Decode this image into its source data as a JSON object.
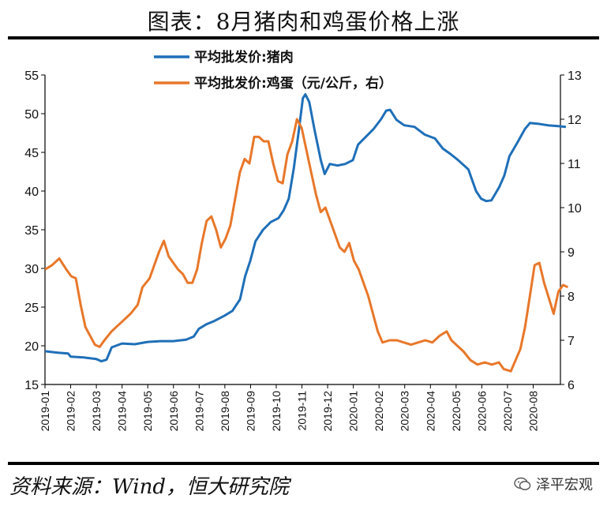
{
  "header": {
    "title": "图表：8月猪肉和鸡蛋价格上涨"
  },
  "footer": {
    "source": "资料来源：Wind，恒大研究院",
    "watermark": "泽平宏观"
  },
  "chart_data": {
    "type": "line",
    "title": "图表：8月猪肉和鸡蛋价格上涨",
    "x_tick_labels": [
      "2019-01",
      "2019-02",
      "2019-03",
      "2019-04",
      "2019-05",
      "2019-06",
      "2019-07",
      "2019-08",
      "2019-09",
      "2019-10",
      "2019-11",
      "2019-12",
      "2020-01",
      "2020-02",
      "2020-03",
      "2020-04",
      "2020-05",
      "2020-06",
      "2020-07",
      "2020-08"
    ],
    "y_left": {
      "lim": [
        15,
        55
      ],
      "ticks": [
        15,
        20,
        25,
        30,
        35,
        40,
        45,
        50,
        55
      ]
    },
    "y_right": {
      "lim": [
        6,
        13
      ],
      "ticks": [
        6,
        7,
        8,
        9,
        10,
        11,
        12,
        13
      ]
    },
    "legend_position": "top-center",
    "grid": false,
    "series": [
      {
        "name": "平均批发价:猪肉",
        "axis": "left",
        "color": "#1f6fb8",
        "points": [
          [
            0.0,
            19.3
          ],
          [
            0.5,
            19.1
          ],
          [
            0.9,
            19.0
          ],
          [
            1.0,
            18.6
          ],
          [
            1.5,
            18.5
          ],
          [
            2.0,
            18.3
          ],
          [
            2.2,
            18.0
          ],
          [
            2.4,
            18.2
          ],
          [
            2.6,
            19.8
          ],
          [
            3.0,
            20.3
          ],
          [
            3.5,
            20.2
          ],
          [
            4.0,
            20.5
          ],
          [
            4.5,
            20.6
          ],
          [
            5.0,
            20.6
          ],
          [
            5.5,
            20.8
          ],
          [
            5.8,
            21.2
          ],
          [
            6.0,
            22.2
          ],
          [
            6.3,
            22.8
          ],
          [
            6.6,
            23.2
          ],
          [
            7.0,
            23.9
          ],
          [
            7.3,
            24.5
          ],
          [
            7.6,
            26.0
          ],
          [
            7.8,
            29.0
          ],
          [
            8.0,
            31.0
          ],
          [
            8.2,
            33.5
          ],
          [
            8.5,
            35.0
          ],
          [
            8.8,
            36.0
          ],
          [
            9.1,
            36.5
          ],
          [
            9.3,
            37.5
          ],
          [
            9.5,
            39.0
          ],
          [
            9.7,
            43.0
          ],
          [
            9.9,
            48.0
          ],
          [
            10.05,
            52.0
          ],
          [
            10.15,
            52.5
          ],
          [
            10.3,
            51.5
          ],
          [
            10.5,
            48.0
          ],
          [
            10.75,
            44.0
          ],
          [
            10.9,
            42.2
          ],
          [
            11.1,
            43.5
          ],
          [
            11.4,
            43.3
          ],
          [
            11.7,
            43.5
          ],
          [
            12.0,
            44.0
          ],
          [
            12.2,
            46.0
          ],
          [
            12.5,
            47.0
          ],
          [
            12.8,
            48.0
          ],
          [
            13.1,
            49.3
          ],
          [
            13.3,
            50.4
          ],
          [
            13.45,
            50.5
          ],
          [
            13.7,
            49.2
          ],
          [
            14.0,
            48.5
          ],
          [
            14.4,
            48.3
          ],
          [
            14.8,
            47.3
          ],
          [
            15.2,
            46.8
          ],
          [
            15.5,
            45.5
          ],
          [
            15.8,
            44.8
          ],
          [
            16.1,
            44.0
          ],
          [
            16.5,
            42.8
          ],
          [
            16.8,
            40.0
          ],
          [
            17.0,
            39.0
          ],
          [
            17.2,
            38.7
          ],
          [
            17.4,
            38.8
          ],
          [
            17.7,
            40.5
          ],
          [
            17.9,
            42.0
          ],
          [
            18.1,
            44.5
          ],
          [
            18.4,
            46.2
          ],
          [
            18.7,
            48.0
          ],
          [
            18.9,
            48.8
          ],
          [
            19.2,
            48.7
          ],
          [
            19.6,
            48.5
          ],
          [
            20.0,
            48.4
          ],
          [
            20.3,
            48.3
          ]
        ]
      },
      {
        "name": "平均批发价:鸡蛋（元/公斤，右）",
        "axis": "right",
        "color": "#e8772a",
        "points": [
          [
            0.0,
            8.6
          ],
          [
            0.3,
            8.7
          ],
          [
            0.6,
            8.85
          ],
          [
            0.9,
            8.6
          ],
          [
            1.1,
            8.45
          ],
          [
            1.3,
            8.4
          ],
          [
            1.5,
            7.8
          ],
          [
            1.7,
            7.3
          ],
          [
            1.9,
            7.1
          ],
          [
            2.1,
            6.9
          ],
          [
            2.3,
            6.85
          ],
          [
            2.5,
            7.0
          ],
          [
            2.8,
            7.2
          ],
          [
            3.0,
            7.3
          ],
          [
            3.3,
            7.45
          ],
          [
            3.6,
            7.6
          ],
          [
            3.9,
            7.8
          ],
          [
            4.1,
            8.2
          ],
          [
            4.4,
            8.4
          ],
          [
            4.6,
            8.7
          ],
          [
            4.8,
            9.0
          ],
          [
            5.0,
            9.25
          ],
          [
            5.2,
            8.9
          ],
          [
            5.4,
            8.75
          ],
          [
            5.6,
            8.6
          ],
          [
            5.8,
            8.5
          ],
          [
            6.0,
            8.3
          ],
          [
            6.2,
            8.3
          ],
          [
            6.4,
            8.6
          ],
          [
            6.6,
            9.2
          ],
          [
            6.8,
            9.7
          ],
          [
            7.0,
            9.8
          ],
          [
            7.2,
            9.5
          ],
          [
            7.4,
            9.1
          ],
          [
            7.6,
            9.3
          ],
          [
            7.8,
            9.6
          ],
          [
            8.0,
            10.2
          ],
          [
            8.2,
            10.8
          ],
          [
            8.4,
            11.1
          ],
          [
            8.6,
            11.0
          ],
          [
            8.8,
            11.6
          ],
          [
            9.0,
            11.6
          ],
          [
            9.2,
            11.5
          ],
          [
            9.4,
            11.5
          ],
          [
            9.6,
            11.0
          ],
          [
            9.8,
            10.6
          ],
          [
            10.0,
            10.55
          ],
          [
            10.2,
            11.2
          ],
          [
            10.4,
            11.5
          ],
          [
            10.6,
            12.0
          ],
          [
            10.8,
            11.8
          ],
          [
            11.0,
            11.3
          ],
          [
            11.2,
            10.8
          ],
          [
            11.4,
            10.3
          ],
          [
            11.6,
            9.9
          ],
          [
            11.8,
            10.0
          ],
          [
            12.0,
            9.7
          ],
          [
            12.2,
            9.4
          ],
          [
            12.4,
            9.1
          ],
          [
            12.6,
            9.0
          ],
          [
            12.8,
            9.2
          ],
          [
            13.0,
            8.8
          ],
          [
            13.2,
            8.6
          ],
          [
            13.4,
            8.3
          ],
          [
            13.6,
            8.0
          ],
          [
            13.8,
            7.6
          ],
          [
            14.0,
            7.2
          ],
          [
            14.2,
            6.95
          ],
          [
            14.5,
            7.0
          ],
          [
            14.8,
            7.0
          ],
          [
            15.1,
            6.95
          ],
          [
            15.4,
            6.9
          ],
          [
            15.7,
            6.95
          ],
          [
            16.0,
            7.0
          ],
          [
            16.3,
            6.95
          ],
          [
            16.6,
            7.1
          ],
          [
            16.9,
            7.2
          ],
          [
            17.1,
            7.0
          ],
          [
            17.3,
            6.9
          ],
          [
            17.6,
            6.75
          ],
          [
            17.9,
            6.55
          ],
          [
            18.2,
            6.45
          ],
          [
            18.5,
            6.5
          ],
          [
            18.8,
            6.45
          ],
          [
            19.1,
            6.5
          ],
          [
            19.3,
            6.35
          ],
          [
            19.6,
            6.3
          ],
          [
            19.8,
            6.55
          ],
          [
            20.0,
            6.8
          ],
          [
            20.2,
            7.3
          ],
          [
            20.4,
            8.0
          ],
          [
            20.6,
            8.7
          ],
          [
            20.8,
            8.75
          ],
          [
            21.0,
            8.3
          ],
          [
            21.2,
            7.95
          ],
          [
            21.4,
            7.6
          ],
          [
            21.6,
            8.1
          ],
          [
            21.8,
            8.25
          ],
          [
            22.0,
            8.2
          ]
        ]
      }
    ]
  }
}
